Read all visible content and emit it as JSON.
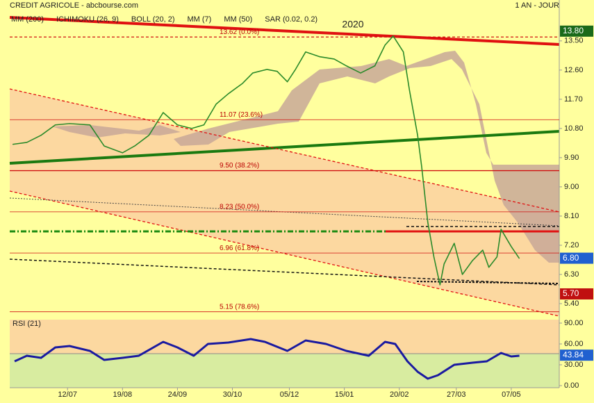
{
  "header": {
    "title": "CREDIT AGRICOLE - abcbourse.com",
    "period": "1 AN - JOUR",
    "indicators": [
      {
        "name": "MM (200)",
        "color": "#2020c0"
      },
      {
        "name": "ICHIMOKU (26, 9)",
        "color": "#202090"
      },
      {
        "name": "BOLL (20, 2)",
        "color": "#f0a040"
      },
      {
        "name": "MM (7)",
        "color": "#208020"
      },
      {
        "name": "MM (50)",
        "color": "#d02020"
      },
      {
        "name": "SAR (0.02, 0.2)",
        "color": "#a02020"
      }
    ]
  },
  "chart_data": [
    {
      "type": "line",
      "annotation": "2020",
      "x": [
        0,
        7,
        14,
        21,
        28,
        38,
        45,
        54,
        60,
        67,
        74,
        81,
        88,
        94,
        100,
        106,
        113,
        118,
        125,
        130,
        135,
        139,
        144,
        151,
        158,
        164,
        171,
        178,
        183,
        187,
        192,
        195,
        199,
        201,
        204,
        207,
        210,
        212,
        217,
        221,
        226,
        231,
        234,
        238,
        240,
        245,
        249
      ],
      "series": [
        {
          "color": "#2a8a2a",
          "values": [
            10.31,
            10.37,
            10.59,
            10.91,
            10.95,
            10.91,
            10.26,
            10.05,
            10.26,
            10.59,
            11.29,
            10.91,
            10.8,
            10.91,
            11.55,
            11.87,
            12.19,
            12.51,
            12.62,
            12.56,
            12.24,
            12.62,
            13.16,
            13.01,
            12.94,
            12.73,
            12.51,
            12.73,
            13.37,
            13.65,
            13.16,
            11.98,
            10.59,
            9.62,
            7.91,
            6.84,
            5.98,
            6.62,
            7.26,
            6.3,
            6.73,
            7.05,
            6.52,
            6.84,
            7.69,
            7.16,
            6.79
          ]
        }
      ],
      "xlim": [
        -1.4,
        268.6
      ],
      "xticks": [
        {
          "value": 27,
          "label": "12/07"
        },
        {
          "value": 54,
          "label": "19/08"
        },
        {
          "value": 81,
          "label": "24/09"
        },
        {
          "value": 108,
          "label": "30/10"
        },
        {
          "value": 136,
          "label": "05/12"
        },
        {
          "value": 163,
          "label": "15/01"
        },
        {
          "value": 190,
          "label": "20/02"
        },
        {
          "value": 218,
          "label": "27/03"
        },
        {
          "value": 245,
          "label": "07/05"
        }
      ],
      "ylim": [
        4.95,
        14.76
      ],
      "yticks": [
        {
          "value": 13.5,
          "label": "13.50"
        },
        {
          "value": 12.6,
          "label": "12.60"
        },
        {
          "value": 11.7,
          "label": "11.70"
        },
        {
          "value": 10.8,
          "label": "10.80"
        },
        {
          "value": 9.9,
          "label": "9.90"
        },
        {
          "value": 9,
          "label": "9.00"
        },
        {
          "value": 8.1,
          "label": "8.10"
        },
        {
          "value": 7.2,
          "label": "7.20"
        },
        {
          "value": 6.3,
          "label": "6.30"
        },
        {
          "value": 5.4,
          "label": "5.40"
        }
      ],
      "fib_levels": [
        {
          "value": 13.62,
          "label": "13.62  (0.0%)"
        },
        {
          "value": 11.07,
          "label": "11.07  (23.6%)"
        },
        {
          "value": 9.5,
          "label": "9.50  (38.2%)"
        },
        {
          "value": 8.23,
          "label": "8.23  (50.0%)"
        },
        {
          "value": 6.96,
          "label": "6.96  (61.8%)"
        },
        {
          "value": 5.15,
          "label": "5.15  (78.6%)"
        }
      ],
      "badges": [
        {
          "value": 13.8,
          "label": "13.80",
          "color": "#1a6a1a"
        },
        {
          "value": 6.8,
          "label": "6.80",
          "color": "#2060d0"
        },
        {
          "value": 5.7,
          "label": "5.70",
          "color": "#c01010"
        }
      ]
    },
    {
      "type": "line",
      "title": "RSI (21)",
      "x": [
        1,
        7,
        14,
        21,
        28,
        38,
        45,
        54,
        62,
        74,
        81,
        89,
        96,
        106,
        117,
        124,
        135,
        144,
        154,
        164,
        175,
        183,
        188,
        194,
        199,
        204,
        209,
        217,
        226,
        233,
        240,
        245,
        249
      ],
      "series": [
        {
          "color": "#1a1aa0",
          "values": [
            35,
            43,
            40,
            55,
            57,
            50,
            37,
            40,
            43,
            63,
            55,
            43,
            60,
            62,
            67,
            63,
            50,
            65,
            60,
            50,
            43,
            63,
            60,
            35,
            20,
            10,
            15,
            30,
            33,
            35,
            47,
            42,
            43
          ]
        }
      ],
      "xlim": [
        -1.4,
        268.6
      ],
      "ylim": [
        -3,
        95
      ],
      "yticks": [
        {
          "value": 90,
          "label": "90.00"
        },
        {
          "value": 60,
          "label": "60.00"
        },
        {
          "value": 30,
          "label": "30.00"
        },
        {
          "value": 0,
          "label": "0.00"
        }
      ],
      "badges": [
        {
          "value": 43.84,
          "label": "43.84",
          "color": "#2060d0"
        }
      ]
    }
  ]
}
